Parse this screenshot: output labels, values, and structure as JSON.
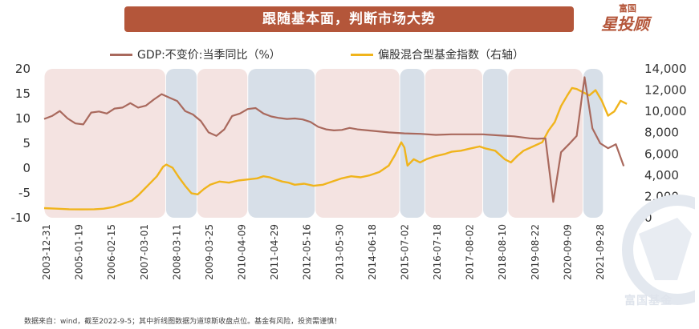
{
  "header": {
    "title": "跟随基本面，判断市场大势"
  },
  "brand": {
    "small": "富国",
    "big": "星投顾",
    "watermark": "富国基金"
  },
  "colors": {
    "gdp": "#a9695d",
    "index": "#f0b41c",
    "band_a": "#f4e3e1",
    "band_b": "#d7dfe8"
  },
  "footnote": "数据来自：wind，截至2022-9-5；其中折线图数据为道琼斯收盘点位。基金有风险，投资需谨慎！",
  "chart_data": {
    "type": "line",
    "title": "跟随基本面，判断市场大势",
    "legend": [
      "GDP:不变价:当季同比（%）",
      "偏股混合型基金指数（右轴）"
    ],
    "y_left": {
      "min": -10,
      "max": 20,
      "ticks": [
        -10,
        -5,
        0,
        5,
        10,
        15,
        20
      ]
    },
    "y_right": {
      "min": 0,
      "max": 14000,
      "ticks": [
        "0",
        "2,000",
        "4,000",
        "6,000",
        "8,000",
        "10,000",
        "12,000",
        "14,000"
      ],
      "values": [
        0,
        2000,
        4000,
        6000,
        8000,
        10000,
        12000,
        14000
      ]
    },
    "x_range": [
      "2003-12-31",
      "2022-09-05"
    ],
    "x_ticks": [
      "2003-12-31",
      "2005-01-19",
      "2006-02-15",
      "2007-03-01",
      "2008-03-11",
      "2009-03-25",
      "2010-04-09",
      "2011-04-29",
      "2012-05-16",
      "2013-05-30",
      "2014-06-18",
      "2015-07-02",
      "2016-07-18",
      "2017-08-02",
      "2018-08-10",
      "2019-08-22",
      "2020-09-09",
      "2021-09-28"
    ],
    "bands": [
      {
        "start": 2004.0,
        "end": 2007.88,
        "kind": "a"
      },
      {
        "start": 2007.88,
        "end": 2008.88,
        "kind": "b"
      },
      {
        "start": 2008.88,
        "end": 2010.5,
        "kind": "a"
      },
      {
        "start": 2010.5,
        "end": 2012.65,
        "kind": "b"
      },
      {
        "start": 2012.65,
        "end": 2015.35,
        "kind": "a"
      },
      {
        "start": 2015.35,
        "end": 2016.15,
        "kind": "b"
      },
      {
        "start": 2016.15,
        "end": 2018.0,
        "kind": "a"
      },
      {
        "start": 2018.0,
        "end": 2018.8,
        "kind": "b"
      },
      {
        "start": 2018.8,
        "end": 2021.2,
        "kind": "a"
      },
      {
        "start": 2021.2,
        "end": 2021.85,
        "kind": "b"
      }
    ],
    "series": [
      {
        "name": "GDP:不变价:当季同比（%）",
        "axis": "left",
        "x": [
          2004.0,
          2004.25,
          2004.5,
          2004.75,
          2005.0,
          2005.25,
          2005.5,
          2005.75,
          2006.0,
          2006.25,
          2006.5,
          2006.75,
          2007.0,
          2007.25,
          2007.5,
          2007.75,
          2008.0,
          2008.25,
          2008.5,
          2008.75,
          2009.0,
          2009.25,
          2009.5,
          2009.75,
          2010.0,
          2010.25,
          2010.5,
          2010.75,
          2011.0,
          2011.25,
          2011.5,
          2011.75,
          2012.0,
          2012.25,
          2012.5,
          2012.75,
          2013.0,
          2013.25,
          2013.5,
          2013.75,
          2014.0,
          2014.5,
          2015.0,
          2015.5,
          2016.0,
          2016.5,
          2017.0,
          2017.5,
          2018.0,
          2018.5,
          2019.0,
          2019.5,
          2019.75,
          2020.0,
          2020.25,
          2020.5,
          2020.75,
          2021.0,
          2021.25,
          2021.5,
          2021.75,
          2022.0,
          2022.25,
          2022.5
        ],
        "values": [
          9.9,
          10.5,
          11.5,
          10.0,
          9.0,
          8.8,
          11.2,
          11.4,
          11.0,
          12.0,
          12.2,
          13.1,
          12.2,
          12.6,
          13.8,
          14.9,
          14.2,
          13.5,
          11.5,
          10.8,
          9.5,
          7.2,
          6.5,
          7.8,
          10.5,
          11.0,
          11.9,
          12.1,
          11.0,
          10.4,
          10.1,
          9.9,
          10.0,
          9.8,
          9.3,
          8.3,
          7.8,
          7.6,
          7.7,
          8.1,
          7.8,
          7.5,
          7.2,
          7.0,
          6.9,
          6.7,
          6.8,
          6.8,
          6.8,
          6.6,
          6.4,
          6.0,
          5.9,
          6.0,
          -6.8,
          3.2,
          4.8,
          6.5,
          18.3,
          8.0,
          5.0,
          4.0,
          4.8,
          0.4
        ]
      },
      {
        "name": "偏股混合型基金指数（右轴）",
        "axis": "right",
        "x": [
          2004.0,
          2004.4,
          2004.8,
          2005.2,
          2005.6,
          2005.9,
          2006.2,
          2006.5,
          2006.8,
          2007.0,
          2007.2,
          2007.4,
          2007.6,
          2007.8,
          2007.9,
          2008.1,
          2008.3,
          2008.5,
          2008.7,
          2008.9,
          2009.1,
          2009.3,
          2009.6,
          2009.9,
          2010.2,
          2010.5,
          2010.8,
          2011.0,
          2011.2,
          2011.4,
          2011.6,
          2011.8,
          2012.0,
          2012.3,
          2012.6,
          2012.9,
          2013.2,
          2013.5,
          2013.8,
          2014.1,
          2014.4,
          2014.7,
          2015.0,
          2015.2,
          2015.4,
          2015.5,
          2015.6,
          2015.8,
          2016.0,
          2016.2,
          2016.5,
          2016.8,
          2017.0,
          2017.3,
          2017.6,
          2017.9,
          2018.1,
          2018.4,
          2018.7,
          2018.9,
          2019.1,
          2019.3,
          2019.6,
          2019.9,
          2020.1,
          2020.3,
          2020.5,
          2020.7,
          2020.85,
          2021.0,
          2021.2,
          2021.4,
          2021.6,
          2021.8,
          2022.0,
          2022.2,
          2022.4,
          2022.6
        ],
        "values": [
          900,
          850,
          800,
          780,
          800,
          850,
          1000,
          1300,
          1600,
          2100,
          2700,
          3300,
          3900,
          4800,
          5000,
          4700,
          3800,
          3000,
          2300,
          2200,
          2700,
          3100,
          3400,
          3300,
          3500,
          3600,
          3700,
          3900,
          3800,
          3600,
          3400,
          3300,
          3100,
          3200,
          3000,
          3100,
          3400,
          3700,
          3900,
          3800,
          4000,
          4300,
          4900,
          5900,
          7100,
          6600,
          4900,
          5500,
          5200,
          5500,
          5800,
          6000,
          6200,
          6300,
          6500,
          6700,
          6500,
          6300,
          5500,
          5200,
          5800,
          6300,
          6700,
          7100,
          8200,
          9000,
          10500,
          11500,
          12200,
          12100,
          11800,
          11500,
          12000,
          11000,
          9600,
          10000,
          11000,
          10700
        ]
      }
    ]
  }
}
